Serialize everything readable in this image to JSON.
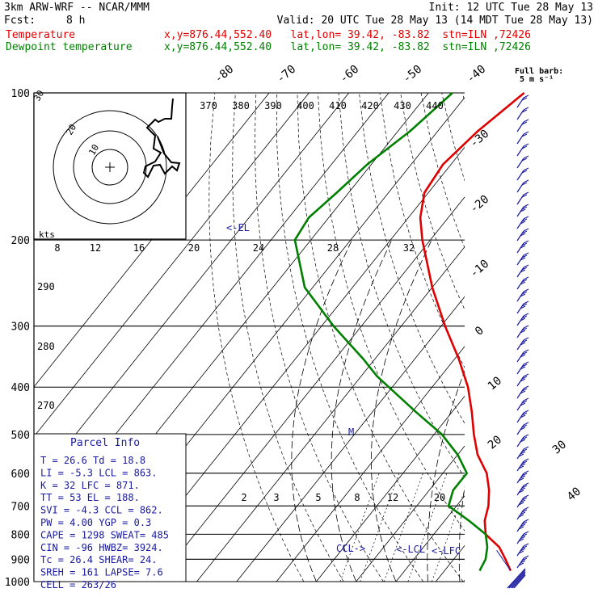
{
  "header": {
    "model": "3km ARW-WRF -- NCAR/MMM",
    "init": "Init: 12 UTC Tue 28 May 13",
    "fcst_label": "Fcst:",
    "fcst_value": "8 h",
    "valid": "Valid: 20 UTC Tue 28 May 13 (14 MDT Tue 28 May 13)",
    "temp_label": "Temperature",
    "temp_loc": "x,y=876.44,552.40   lat,lon= 39.42, -83.82  stn=ILN ,72426",
    "dew_label": "Dewpoint temperature",
    "dew_loc": "x,y=876.44,552.40   lat,lon= 39.42, -83.82  stn=ILN ,72426",
    "full_barb": "Full barb:",
    "full_barb_units": "5 m s⁻¹"
  },
  "colors": {
    "temperature": "#e00000",
    "dewpoint": "#008000",
    "barbs": "#1a1aa0",
    "labels": "#1a1aa0"
  },
  "chart_data": {
    "type": "line",
    "pressure_levels": [
      100,
      200,
      300,
      400,
      500,
      600,
      700,
      800,
      900,
      1000
    ],
    "isotherm_labels": [
      "-80",
      "-70",
      "-60",
      "-50",
      "-40",
      "-30",
      "-20",
      "-10",
      "0",
      "10",
      "20",
      "30",
      "40"
    ],
    "theta_labels": [
      "370",
      "380",
      "390",
      "400",
      "410",
      "420",
      "430",
      "440"
    ],
    "theta_low_labels": [
      "290",
      "280",
      "270"
    ],
    "hodo_speed_labels": [
      "8",
      "12",
      "16",
      "20",
      "24",
      "28",
      "32"
    ],
    "hodo_label": "kts",
    "hodo_rings": [
      "30",
      "20",
      "10"
    ],
    "mixing_ratio_labels": [
      "2",
      "3",
      "5",
      "8",
      "12",
      "20"
    ],
    "series": [
      {
        "name": "Temperature",
        "color": "#e00000",
        "points": [
          [
            100,
            -66
          ],
          [
            120,
            -70
          ],
          [
            140,
            -72
          ],
          [
            160,
            -71
          ],
          [
            180,
            -67
          ],
          [
            200,
            -62
          ],
          [
            250,
            -50
          ],
          [
            300,
            -39
          ],
          [
            350,
            -29
          ],
          [
            400,
            -21
          ],
          [
            450,
            -15
          ],
          [
            500,
            -10
          ],
          [
            550,
            -5
          ],
          [
            600,
            1
          ],
          [
            650,
            5
          ],
          [
            700,
            8
          ],
          [
            750,
            10
          ],
          [
            800,
            13
          ],
          [
            850,
            19
          ],
          [
            900,
            23
          ],
          [
            950,
            26.6
          ]
        ]
      },
      {
        "name": "Dewpoint temperature",
        "color": "#008000",
        "points": [
          [
            100,
            -84
          ],
          [
            120,
            -87
          ],
          [
            140,
            -91
          ],
          [
            160,
            -93
          ],
          [
            180,
            -95
          ],
          [
            200,
            -94
          ],
          [
            250,
            -82
          ],
          [
            300,
            -67
          ],
          [
            350,
            -53
          ],
          [
            380,
            -46
          ],
          [
            450,
            -29
          ],
          [
            500,
            -18
          ],
          [
            550,
            -10
          ],
          [
            600,
            -4
          ],
          [
            650,
            -4
          ],
          [
            700,
            -2
          ],
          [
            750,
            6
          ],
          [
            800,
            13
          ],
          [
            850,
            16
          ],
          [
            900,
            18
          ],
          [
            950,
            18.8
          ]
        ]
      }
    ],
    "annotations": {
      "el": "<-EL",
      "ccl": "CCL->",
      "lcl": "<-LCL",
      "lfc": "<-LFC",
      "m": "M"
    }
  },
  "parcel": {
    "title": "Parcel Info",
    "rows": [
      "T  =    26.6  Td =  18.8",
      "LI =    -5.3  LCL =  863.",
      "K  =      32  LFC =  871.",
      "TT =      53  EL =  188.",
      "SVI =   -4.3  CCL =  862.",
      "PW =    4.00  YGP =   0.3",
      "CAPE =  1298  SWEAT=  485",
      "CIN =    -96  HWBZ= 3924.",
      "Tc =    26.4  SHEAR=  24.",
      "SREH =   161  LAPSE=  7.6",
      "CELL = 263/26"
    ]
  }
}
